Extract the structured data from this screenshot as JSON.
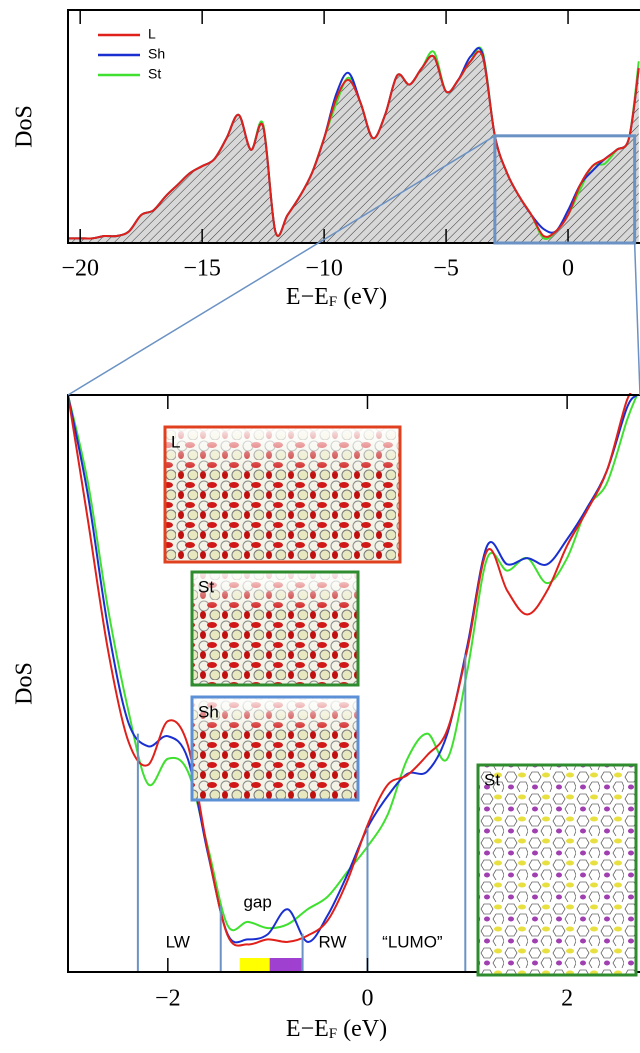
{
  "chart_data": [
    {
      "type": "line",
      "ylabel": "DoS",
      "xlabel_parts": [
        "E−E",
        "F",
        " (eV)"
      ],
      "xlim": [
        -20.5,
        2.95
      ],
      "ylim": [
        0,
        1
      ],
      "xticks": [
        {
          "value": -20,
          "label": "−20"
        },
        {
          "value": -15,
          "label": "−15"
        },
        {
          "value": -10,
          "label": "−10"
        },
        {
          "value": -5,
          "label": "−5"
        },
        0
      ],
      "legend": "upper left",
      "hatch": true,
      "x": [
        -20.5,
        -20,
        -19.5,
        -19,
        -18.5,
        -18,
        -17.5,
        -17,
        -16.5,
        -16,
        -15.5,
        -15,
        -14.5,
        -14,
        -13.5,
        -13,
        -12.5,
        -12,
        -11.5,
        -11,
        -10.5,
        -10,
        -9.5,
        -9,
        -8.5,
        -8,
        -7.5,
        -7,
        -6.5,
        -6,
        -5.5,
        -5,
        -4.5,
        -4,
        -3.5,
        -3,
        -2.5,
        -2,
        -1.5,
        -1,
        -0.5,
        0,
        0.5,
        1,
        1.5,
        2,
        2.5,
        2.9
      ],
      "series": [
        {
          "name": "L",
          "color": "#e0201a",
          "values": [
            0.02,
            0.02,
            0.02,
            0.03,
            0.03,
            0.05,
            0.12,
            0.14,
            0.2,
            0.25,
            0.3,
            0.33,
            0.36,
            0.45,
            0.55,
            0.4,
            0.5,
            0.05,
            0.12,
            0.2,
            0.3,
            0.45,
            0.62,
            0.7,
            0.6,
            0.45,
            0.55,
            0.72,
            0.68,
            0.75,
            0.8,
            0.65,
            0.7,
            0.78,
            0.8,
            0.46,
            0.3,
            0.2,
            0.12,
            0.03,
            0.05,
            0.12,
            0.25,
            0.33,
            0.36,
            0.4,
            0.45,
            0.75
          ]
        },
        {
          "name": "Sh",
          "color": "#1a2fd0",
          "values": [
            0.02,
            0.02,
            0.02,
            0.03,
            0.03,
            0.05,
            0.12,
            0.14,
            0.2,
            0.25,
            0.3,
            0.33,
            0.36,
            0.45,
            0.55,
            0.4,
            0.5,
            0.05,
            0.12,
            0.2,
            0.3,
            0.45,
            0.64,
            0.73,
            0.6,
            0.45,
            0.55,
            0.72,
            0.68,
            0.75,
            0.8,
            0.65,
            0.7,
            0.8,
            0.81,
            0.46,
            0.3,
            0.2,
            0.12,
            0.06,
            0.05,
            0.14,
            0.25,
            0.31,
            0.36,
            0.4,
            0.45,
            0.75
          ]
        },
        {
          "name": "St",
          "color": "#40e030",
          "values": [
            0.02,
            0.02,
            0.02,
            0.03,
            0.03,
            0.05,
            0.12,
            0.14,
            0.2,
            0.25,
            0.3,
            0.33,
            0.36,
            0.45,
            0.55,
            0.4,
            0.51,
            0.05,
            0.12,
            0.2,
            0.3,
            0.45,
            0.6,
            0.71,
            0.6,
            0.45,
            0.55,
            0.72,
            0.68,
            0.75,
            0.82,
            0.65,
            0.7,
            0.78,
            0.82,
            0.46,
            0.3,
            0.2,
            0.12,
            0.02,
            0.05,
            0.12,
            0.23,
            0.33,
            0.34,
            0.4,
            0.45,
            0.78
          ]
        }
      ]
    },
    {
      "type": "line",
      "ylabel": "DoS",
      "xlabel_parts": [
        "E−E",
        "F",
        " (eV)"
      ],
      "xlim": [
        -3,
        2.73
      ],
      "ylim": [
        0,
        0.46
      ],
      "xticks": [
        {
          "value": -2,
          "label": "−2"
        },
        0,
        2
      ],
      "x": [
        -3,
        -2.8,
        -2.6,
        -2.4,
        -2.2,
        -2,
        -1.8,
        -1.6,
        -1.4,
        -1.2,
        -1,
        -0.8,
        -0.6,
        -0.4,
        -0.2,
        0,
        0.2,
        0.4,
        0.6,
        0.8,
        1,
        1.2,
        1.4,
        1.6,
        1.8,
        2,
        2.2,
        2.4,
        2.6,
        2.7
      ],
      "series": [
        {
          "name": "L",
          "color": "#e0201a",
          "values": [
            0.46,
            0.36,
            0.257,
            0.185,
            0.165,
            0.2,
            0.181,
            0.097,
            0.029,
            0.022,
            0.026,
            0.024,
            0.029,
            0.041,
            0.073,
            0.117,
            0.149,
            0.157,
            0.173,
            0.193,
            0.257,
            0.336,
            0.304,
            0.285,
            0.304,
            0.34,
            0.368,
            0.4,
            0.456,
            0.464
          ]
        },
        {
          "name": "Sh",
          "color": "#1a2fd0",
          "values": [
            0.46,
            0.38,
            0.275,
            0.2,
            0.18,
            0.188,
            0.17,
            0.095,
            0.03,
            0.026,
            0.03,
            0.05,
            0.024,
            0.045,
            0.078,
            0.115,
            0.14,
            0.158,
            0.16,
            0.19,
            0.26,
            0.34,
            0.325,
            0.33,
            0.325,
            0.345,
            0.37,
            0.4,
            0.45,
            0.46
          ]
        },
        {
          "name": "St",
          "color": "#40e030",
          "values": [
            0.46,
            0.39,
            0.29,
            0.21,
            0.15,
            0.17,
            0.16,
            0.1,
            0.037,
            0.04,
            0.035,
            0.038,
            0.05,
            0.06,
            0.08,
            0.1,
            0.125,
            0.17,
            0.19,
            0.17,
            0.24,
            0.33,
            0.32,
            0.33,
            0.31,
            0.33,
            0.37,
            0.39,
            0.44,
            0.46
          ]
        }
      ],
      "markers": [
        -2.3,
        -1.47,
        -0.65,
        0,
        0.98
      ],
      "bands": [
        {
          "from": -1.28,
          "to": -0.98,
          "color": "#ffff00"
        },
        {
          "from": -0.98,
          "to": -0.66,
          "color": "#a040d0"
        }
      ],
      "annotations": [
        {
          "text": "LW",
          "x": -1.9
        },
        {
          "text": "gap",
          "x": -1.1
        },
        {
          "text": "RW",
          "x": -0.35
        },
        {
          "text": "“LUMO”",
          "x": 0.45
        }
      ],
      "insets": [
        {
          "label": "L",
          "color": "#e0401e"
        },
        {
          "label": "St",
          "color": "#2e8b2e"
        },
        {
          "label": "Sh",
          "color": "#5b8fd6"
        },
        {
          "label": "St",
          "color": "#2e8b2e"
        }
      ]
    }
  ]
}
